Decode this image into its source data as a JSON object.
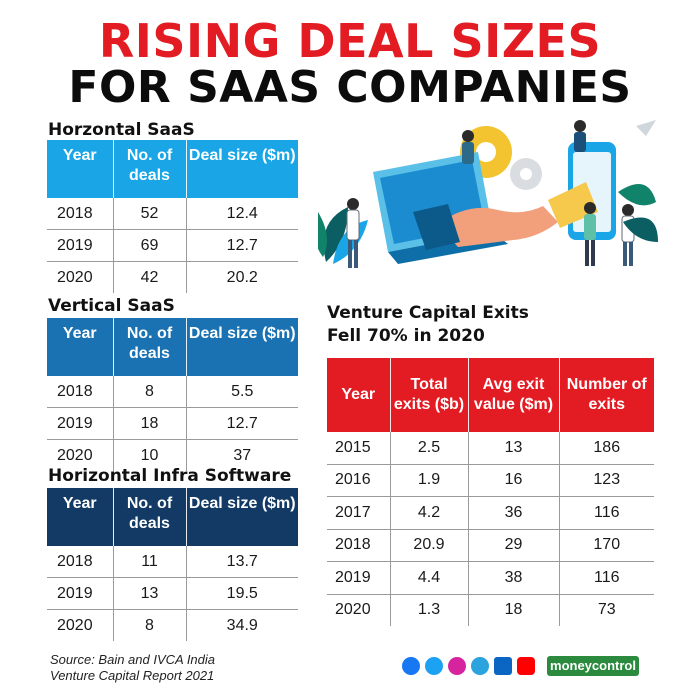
{
  "header": {
    "title_line1": "RISING DEAL SIZES",
    "title_line2": "FOR SAAS COMPANIES"
  },
  "tables": {
    "horizontal_saas": {
      "heading": "Horzontal SaaS",
      "columns": [
        "Year",
        "No. of deals",
        "Deal size ($m)"
      ],
      "rows": [
        [
          "2018",
          "52",
          "12.4"
        ],
        [
          "2019",
          "69",
          "12.7"
        ],
        [
          "2020",
          "42",
          "20.2"
        ]
      ]
    },
    "vertical_saas": {
      "heading": "Vertical SaaS",
      "columns": [
        "Year",
        "No. of deals",
        "Deal size ($m)"
      ],
      "rows": [
        [
          "2018",
          "8",
          "5.5"
        ],
        [
          "2019",
          "18",
          "12.7"
        ],
        [
          "2020",
          "10",
          "37"
        ]
      ]
    },
    "horizontal_infra": {
      "heading": "Horizontal Infra Software",
      "columns": [
        "Year",
        "No. of deals",
        "Deal size ($m)"
      ],
      "rows": [
        [
          "2018",
          "11",
          "13.7"
        ],
        [
          "2019",
          "13",
          "19.5"
        ],
        [
          "2020",
          "8",
          "34.9"
        ]
      ]
    },
    "venture_exits": {
      "heading_line1": "Venture Capital Exits",
      "heading_line2": "Fell 70% in 2020",
      "columns": [
        "Year",
        "Total exits ($b)",
        "Avg exit value ($m)",
        "Number of exits"
      ],
      "rows": [
        [
          "2015",
          "2.5",
          "13",
          "186"
        ],
        [
          "2016",
          "1.9",
          "16",
          "123"
        ],
        [
          "2017",
          "4.2",
          "36",
          "116"
        ],
        [
          "2018",
          "20.9",
          "29",
          "170"
        ],
        [
          "2019",
          "4.4",
          "38",
          "116"
        ],
        [
          "2020",
          "1.3",
          "18",
          "73"
        ]
      ]
    }
  },
  "footer": {
    "source_line1": "Source: Bain and IVCA India",
    "source_line2": "Venture Capital Report 2021",
    "brand": "moneycontrol",
    "social_icons": [
      "facebook-icon",
      "twitter-icon",
      "instagram-icon",
      "telegram-icon",
      "linkedin-icon",
      "youtube-icon"
    ]
  },
  "colors": {
    "title_red": "#e31b23",
    "horizontal_header": "#1aa5e6",
    "vertical_header": "#1b72b3",
    "infra_header": "#123a64",
    "exits_header": "#e31b23",
    "brand_green": "#2b8a3e"
  },
  "chart_data": [
    {
      "type": "table",
      "title": "Horzontal SaaS",
      "columns": [
        "Year",
        "No. of deals",
        "Deal size ($m)"
      ],
      "rows": [
        [
          2018,
          52,
          12.4
        ],
        [
          2019,
          69,
          12.7
        ],
        [
          2020,
          42,
          20.2
        ]
      ]
    },
    {
      "type": "table",
      "title": "Vertical SaaS",
      "columns": [
        "Year",
        "No. of deals",
        "Deal size ($m)"
      ],
      "rows": [
        [
          2018,
          8,
          5.5
        ],
        [
          2019,
          18,
          12.7
        ],
        [
          2020,
          10,
          37
        ]
      ]
    },
    {
      "type": "table",
      "title": "Horizontal Infra Software",
      "columns": [
        "Year",
        "No. of deals",
        "Deal size ($m)"
      ],
      "rows": [
        [
          2018,
          11,
          13.7
        ],
        [
          2019,
          13,
          19.5
        ],
        [
          2020,
          8,
          34.9
        ]
      ]
    },
    {
      "type": "table",
      "title": "Venture Capital Exits Fell 70% in 2020",
      "columns": [
        "Year",
        "Total exits ($b)",
        "Avg exit value ($m)",
        "Number of exits"
      ],
      "rows": [
        [
          2015,
          2.5,
          13,
          186
        ],
        [
          2016,
          1.9,
          16,
          123
        ],
        [
          2017,
          4.2,
          36,
          116
        ],
        [
          2018,
          20.9,
          29,
          170
        ],
        [
          2019,
          4.4,
          38,
          116
        ],
        [
          2020,
          1.3,
          18,
          73
        ]
      ]
    }
  ]
}
